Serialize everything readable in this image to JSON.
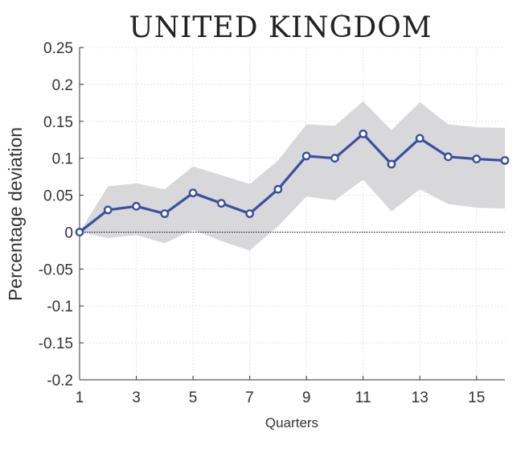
{
  "chart_data": {
    "type": "line",
    "title": "UNITED KINGDOM",
    "xlabel": "Quarters",
    "ylabel": "Percentage deviation",
    "xlim": [
      1,
      16
    ],
    "ylim": [
      -0.2,
      0.25
    ],
    "x_ticks": [
      1,
      3,
      5,
      7,
      9,
      11,
      13,
      15
    ],
    "y_ticks": [
      0.25,
      0.2,
      0.15,
      0.1,
      0.05,
      0,
      -0.05,
      -0.1,
      -0.15,
      -0.2
    ],
    "y_tick_labels": [
      "0.25",
      "0.2",
      "0.15",
      "0.1",
      "0.05",
      "0",
      "-0.05",
      "-0.1",
      "-0.15",
      "-0.2"
    ],
    "grid": true,
    "zero_line": true,
    "x": [
      1,
      2,
      3,
      4,
      5,
      6,
      7,
      8,
      9,
      10,
      11,
      12,
      13,
      14,
      15,
      16
    ],
    "series": [
      {
        "values": [
          0,
          0.03,
          0.035,
          0.025,
          0.053,
          0.039,
          0.025,
          0.058,
          0.103,
          0.1,
          0.133,
          0.092,
          0.127,
          0.102,
          0.099,
          0.097
        ],
        "color": "#3c4fa0"
      }
    ],
    "band": {
      "upper": [
        0,
        0.062,
        0.066,
        0.058,
        0.089,
        0.077,
        0.065,
        0.097,
        0.146,
        0.144,
        0.177,
        0.138,
        0.176,
        0.146,
        0.142,
        0.141
      ],
      "lower": [
        0,
        -0.008,
        -0.004,
        -0.015,
        0.003,
        -0.012,
        -0.025,
        0.008,
        0.048,
        0.043,
        0.071,
        0.028,
        0.058,
        0.038,
        0.033,
        0.032
      ],
      "color": "#d8d8da"
    }
  }
}
